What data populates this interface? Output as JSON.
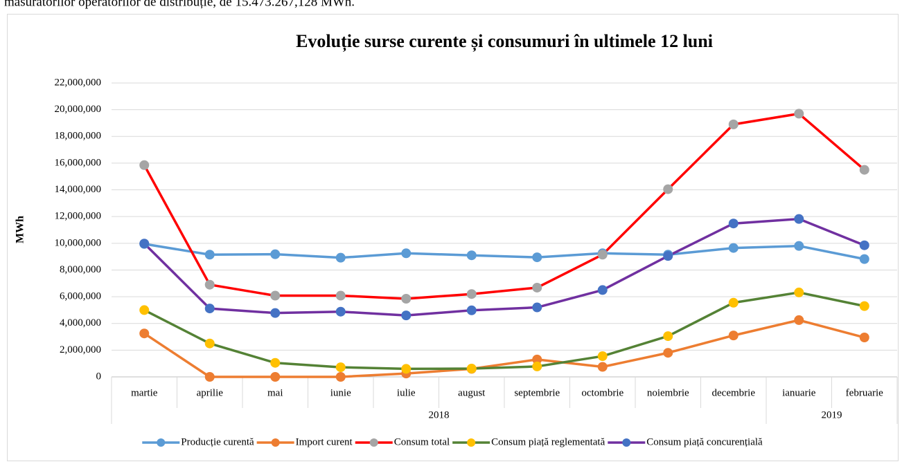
{
  "header_text": "măsurătorilor operatorilor de distribuție, de 15.473.267,128 MWh.",
  "chart_data": {
    "type": "line",
    "title": "Evoluție surse curente și consumuri în ultimele 12 luni",
    "y_label": "MWh",
    "categories": [
      "martie",
      "aprilie",
      "mai",
      "iunie",
      "iulie",
      "august",
      "septembrie",
      "octombrie",
      "noiembrie",
      "decembrie",
      "ianuarie",
      "februarie"
    ],
    "x_groups": [
      {
        "label": "2018",
        "start": 0,
        "end": 9
      },
      {
        "label": "2019",
        "start": 10,
        "end": 11
      }
    ],
    "ylim": [
      0,
      22000000
    ],
    "yticks": [
      0,
      {
        "value": 2000000,
        "label": "2,000,000"
      },
      {
        "value": 4000000,
        "label": "4,000,000"
      },
      {
        "value": 6000000,
        "label": "6,000,000"
      },
      {
        "value": 8000000,
        "label": "8,000,000"
      },
      {
        "value": 10000000,
        "label": "10,000,000"
      },
      {
        "value": 12000000,
        "label": "12,000,000"
      },
      {
        "value": 14000000,
        "label": "14,000,000"
      },
      {
        "value": 16000000,
        "label": "16,000,000"
      },
      {
        "value": 18000000,
        "label": "18,000,000"
      },
      {
        "value": 20000000,
        "label": "20,000,000"
      },
      {
        "value": 22000000,
        "label": "22,000,000"
      }
    ],
    "grid": true,
    "legend": "bottom",
    "series": [
      {
        "name": "Producție curentă",
        "color": "#5b9bd5",
        "marker_color": "#5b9bd5",
        "values": [
          9950000,
          9150000,
          9180000,
          8920000,
          9250000,
          9100000,
          8950000,
          9250000,
          9150000,
          9650000,
          9800000,
          8820000
        ]
      },
      {
        "name": "Import curent",
        "color": "#ed7d31",
        "marker_color": "#ed7d31",
        "values": [
          3250000,
          0,
          0,
          0,
          250000,
          600000,
          1300000,
          750000,
          1800000,
          3100000,
          4250000,
          2950000
        ]
      },
      {
        "name": "Consum total",
        "color": "#ff0000",
        "marker_color": "#a5a5a5",
        "values": [
          15850000,
          6900000,
          6080000,
          6080000,
          5850000,
          6200000,
          6680000,
          9150000,
          14050000,
          18900000,
          19700000,
          15500000
        ]
      },
      {
        "name": "Consum piață reglementată",
        "color": "#548235",
        "marker_color": "#ffc000",
        "values": [
          5000000,
          2500000,
          1050000,
          720000,
          600000,
          620000,
          780000,
          1550000,
          3050000,
          5550000,
          6320000,
          5300000
        ]
      },
      {
        "name": "Consum piață concurențială",
        "color": "#7030a0",
        "marker_color": "#4472c4",
        "values": [
          9980000,
          5120000,
          4780000,
          4880000,
          4600000,
          4980000,
          5200000,
          6500000,
          9050000,
          11480000,
          11820000,
          9850000
        ]
      }
    ]
  }
}
